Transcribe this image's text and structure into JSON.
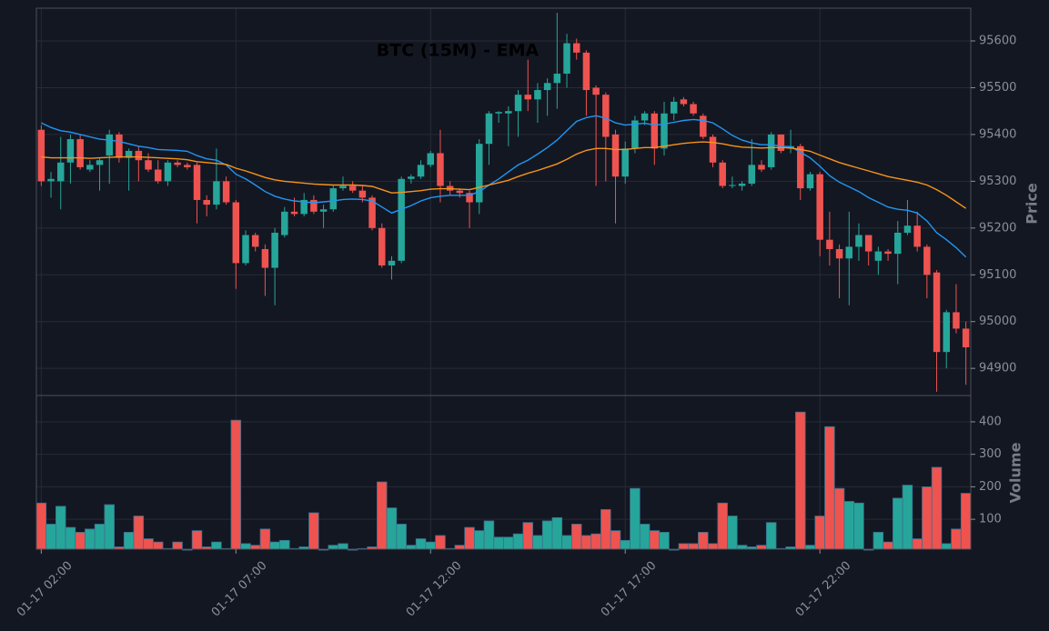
{
  "chart_data": [
    {
      "type": "candlestick",
      "title": "BTC (15M) - EMA",
      "y_label": "Price",
      "categories": [
        "01-17 02:00",
        null,
        null,
        null,
        null,
        null,
        null,
        null,
        null,
        null,
        null,
        null,
        null,
        null,
        null,
        null,
        null,
        null,
        null,
        null,
        "01-17 07:00",
        null,
        null,
        null,
        null,
        null,
        null,
        null,
        null,
        null,
        null,
        null,
        null,
        null,
        null,
        null,
        null,
        null,
        null,
        null,
        "01-17 12:00",
        null,
        null,
        null,
        null,
        null,
        null,
        null,
        null,
        null,
        null,
        null,
        null,
        null,
        null,
        null,
        null,
        null,
        null,
        null,
        "01-17 17:00",
        null,
        null,
        null,
        null,
        null,
        null,
        null,
        null,
        null,
        null,
        null,
        null,
        null,
        null,
        null,
        null,
        null,
        null,
        null,
        "01-17 22:00",
        null,
        null,
        null,
        null,
        null,
        null,
        null,
        null,
        null,
        null,
        null,
        null,
        null,
        null,
        null
      ],
      "open": [
        95410,
        95300,
        95300,
        95340,
        95390,
        95325,
        95335,
        95355,
        95400,
        95350,
        95365,
        95345,
        95325,
        95300,
        95340,
        95335,
        95335,
        95260,
        95250,
        95300,
        95255,
        95125,
        95185,
        95155,
        95115,
        95185,
        95235,
        95230,
        95260,
        95235,
        95240,
        95285,
        95290,
        95280,
        95265,
        95200,
        95120,
        95130,
        95305,
        95310,
        95335,
        95360,
        95290,
        95280,
        95275,
        95255,
        95380,
        95445,
        95445,
        95450,
        95485,
        95475,
        95495,
        95510,
        95530,
        95595,
        95575,
        95500,
        95485,
        95400,
        95310,
        95370,
        95430,
        95445,
        95370,
        95445,
        95475,
        95465,
        95440,
        95395,
        95340,
        95290,
        95290,
        95295,
        95335,
        95330,
        95400,
        95370,
        95375,
        95285,
        95315,
        95175,
        95155,
        95135,
        95160,
        95185,
        95130,
        95150,
        95145,
        95190,
        95205,
        95160,
        95105,
        94935,
        95020,
        94985
      ],
      "high": [
        95420,
        95320,
        95395,
        95400,
        95400,
        95345,
        95350,
        95410,
        95405,
        95370,
        95375,
        95360,
        95345,
        95345,
        95345,
        95340,
        95340,
        95270,
        95370,
        95310,
        95260,
        95195,
        95190,
        95165,
        95200,
        95245,
        95265,
        95275,
        95270,
        95250,
        95290,
        95310,
        95300,
        95290,
        95270,
        95210,
        95140,
        95310,
        95315,
        95345,
        95365,
        95410,
        95300,
        95285,
        95280,
        95390,
        95450,
        95450,
        95460,
        95495,
        95560,
        95510,
        95520,
        95660,
        95615,
        95605,
        95580,
        95505,
        95490,
        95410,
        95385,
        95440,
        95450,
        95450,
        95470,
        95480,
        95480,
        95470,
        95445,
        95400,
        95345,
        95310,
        95300,
        95390,
        95345,
        95405,
        95400,
        95410,
        95380,
        95320,
        95320,
        95235,
        95165,
        95235,
        95210,
        95185,
        95160,
        95155,
        95215,
        95260,
        95235,
        95165,
        95110,
        95025,
        95080,
        95000
      ],
      "low": [
        95290,
        95265,
        95240,
        95295,
        95325,
        95320,
        95280,
        95295,
        95340,
        95280,
        95300,
        95320,
        95295,
        95290,
        95330,
        95325,
        95210,
        95225,
        95240,
        95250,
        95070,
        95120,
        95150,
        95055,
        95035,
        95180,
        95225,
        95225,
        95230,
        95200,
        95235,
        95280,
        95275,
        95255,
        95195,
        95115,
        95090,
        95125,
        95295,
        95305,
        95330,
        95255,
        95270,
        95265,
        95200,
        95230,
        95335,
        95425,
        95375,
        95395,
        95450,
        95425,
        95440,
        95455,
        95500,
        95560,
        95440,
        95290,
        95300,
        95210,
        95295,
        95360,
        95420,
        95335,
        95355,
        95430,
        95460,
        95440,
        95390,
        95330,
        95285,
        95285,
        95280,
        95290,
        95320,
        95325,
        95360,
        95360,
        95260,
        95280,
        95140,
        95120,
        95050,
        95035,
        95130,
        95120,
        95100,
        95130,
        95080,
        95185,
        95150,
        95050,
        94850,
        94900,
        94975,
        94865
      ],
      "close": [
        95300,
        95305,
        95340,
        95390,
        95330,
        95335,
        95345,
        95400,
        95350,
        95365,
        95345,
        95325,
        95300,
        95340,
        95335,
        95330,
        95260,
        95250,
        95300,
        95255,
        95125,
        95185,
        95160,
        95115,
        95190,
        95235,
        95230,
        95260,
        95235,
        95240,
        95285,
        95290,
        95280,
        95265,
        95200,
        95120,
        95130,
        95305,
        95310,
        95335,
        95360,
        95290,
        95280,
        95275,
        95255,
        95380,
        95445,
        95448,
        95450,
        95485,
        95475,
        95495,
        95510,
        95530,
        95595,
        95575,
        95495,
        95485,
        95395,
        95310,
        95370,
        95430,
        95445,
        95370,
        95445,
        95470,
        95465,
        95445,
        95395,
        95340,
        95290,
        95292,
        95295,
        95335,
        95325,
        95400,
        95365,
        95375,
        95285,
        95315,
        95175,
        95155,
        95135,
        95160,
        95185,
        95150,
        95150,
        95145,
        95190,
        95205,
        95160,
        95100,
        94935,
        95020,
        94985,
        94945
      ],
      "up_color": "#26a69a",
      "down_color": "#ef5350",
      "series": [
        {
          "color": "#2196f3",
          "values": [
            95425,
            95415,
            95408,
            95405,
            95400,
            95395,
            95390,
            95388,
            95385,
            95380,
            95375,
            95372,
            95368,
            95367,
            95366,
            95364,
            95355,
            95348,
            95345,
            95335,
            95315,
            95305,
            95292,
            95278,
            95268,
            95262,
            95258,
            95256,
            95254,
            95256,
            95258,
            95261,
            95262,
            95261,
            95258,
            95245,
            95232,
            95240,
            95248,
            95258,
            95265,
            95268,
            95270,
            95270,
            95270,
            95278,
            95292,
            95305,
            95320,
            95335,
            95345,
            95358,
            95372,
            95388,
            95408,
            95428,
            95436,
            95440,
            95435,
            95425,
            95420,
            95422,
            95424,
            95420,
            95422,
            95426,
            95430,
            95432,
            95430,
            95425,
            95412,
            95398,
            95388,
            95382,
            95378,
            95378,
            95375,
            95374,
            95362,
            95350,
            95332,
            95312,
            95298,
            95288,
            95278,
            95265,
            95255,
            95245,
            95240,
            95238,
            95232,
            95215,
            95190,
            95175,
            95158,
            95138
          ]
        },
        {
          "color": "#f7931a",
          "values": [
            95352,
            95350,
            95350,
            95350,
            95350,
            95349,
            95350,
            95351,
            95352,
            95352,
            95352,
            95351,
            95350,
            95349,
            95348,
            95346,
            95342,
            95340,
            95338,
            95336,
            95328,
            95322,
            95315,
            95308,
            95303,
            95300,
            95298,
            95296,
            95294,
            95293,
            95292,
            95292,
            95292,
            95291,
            95289,
            95282,
            95275,
            95276,
            95278,
            95280,
            95283,
            95284,
            95284,
            95283,
            95282,
            95287,
            95292,
            95297,
            95302,
            95310,
            95317,
            95323,
            95330,
            95337,
            95347,
            95358,
            95366,
            95370,
            95370,
            95368,
            95368,
            95370,
            95372,
            95372,
            95375,
            95378,
            95381,
            95383,
            95384,
            95383,
            95380,
            95376,
            95373,
            95372,
            95371,
            95372,
            95372,
            95371,
            95368,
            95364,
            95356,
            95348,
            95340,
            95334,
            95328,
            95322,
            95316,
            95310,
            95306,
            95302,
            95298,
            95292,
            95282,
            95270,
            95256,
            95242
          ]
        }
      ],
      "ylim": [
        94842,
        95670
      ],
      "yticks": [
        94900,
        95000,
        95100,
        95200,
        95300,
        95400,
        95500,
        95600
      ],
      "grid": true
    },
    {
      "type": "bar",
      "y_label": "Volume",
      "values": [
        150,
        85,
        140,
        75,
        60,
        70,
        85,
        145,
        15,
        60,
        110,
        40,
        30,
        10,
        30,
        5,
        65,
        15,
        30,
        10,
        405,
        25,
        20,
        70,
        30,
        35,
        10,
        15,
        120,
        5,
        20,
        25,
        5,
        10,
        15,
        215,
        135,
        85,
        20,
        40,
        30,
        50,
        10,
        20,
        75,
        65,
        95,
        45,
        45,
        55,
        90,
        50,
        95,
        105,
        50,
        85,
        50,
        55,
        130,
        65,
        35,
        195,
        85,
        65,
        60,
        5,
        25,
        25,
        60,
        25,
        150,
        110,
        20,
        15,
        20,
        90,
        10,
        15,
        430,
        20,
        110,
        385,
        195,
        155,
        150,
        5,
        60,
        30,
        165,
        205,
        40,
        200,
        260,
        25,
        70,
        180
      ],
      "ylim": [
        8,
        481
      ],
      "yticks": [
        100,
        200,
        300,
        400
      ],
      "grid": true
    }
  ]
}
